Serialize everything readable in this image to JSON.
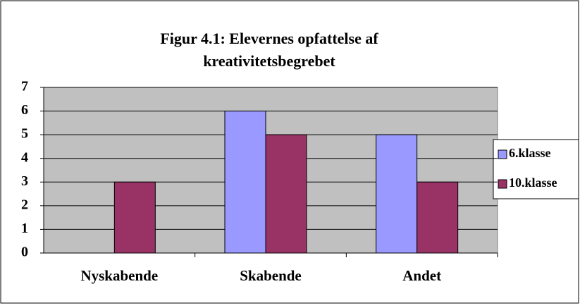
{
  "chart_data": {
    "type": "bar",
    "title": [
      "Figur 4.1: Elevernes opfattelse af",
      "kreativitetsbegrebet"
    ],
    "categories": [
      "Nyskabende",
      "Skabende",
      "Andet"
    ],
    "series": [
      {
        "name": "6.klasse",
        "color": "#9999ff",
        "values": [
          0,
          6,
          5
        ]
      },
      {
        "name": "10.klasse",
        "color": "#993366",
        "values": [
          3,
          5,
          3
        ]
      }
    ],
    "ylim": [
      0,
      7
    ],
    "yticks": [
      0,
      1,
      2,
      3,
      4,
      5,
      6,
      7
    ],
    "grid": true,
    "legend": "right"
  }
}
